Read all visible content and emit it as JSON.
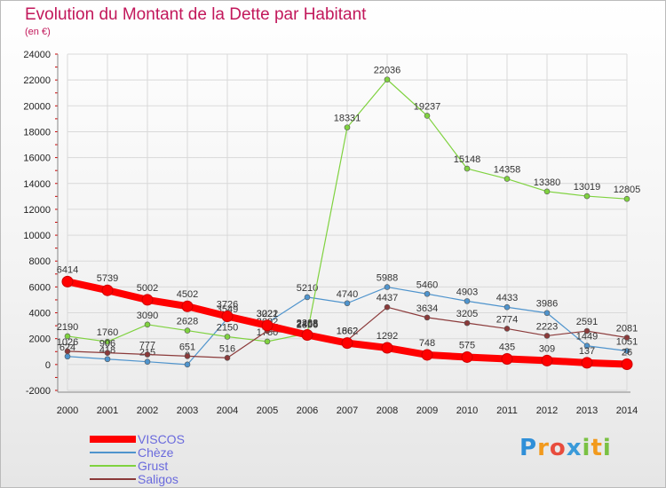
{
  "chart": {
    "title": "Evolution du Montant de la Dette par Habitant",
    "subtitle": "(en €)"
  },
  "colors": {
    "title": "#c2185b",
    "legend_text": "#6a6add",
    "grid": "#d9d9d9",
    "axis_tick": "#cc0000"
  },
  "logo": {
    "text": "Proxiti"
  },
  "chart_data": {
    "type": "line",
    "title": "Evolution du Montant de la Dette par Habitant",
    "subtitle": "(en €)",
    "xlabel": "",
    "ylabel": "",
    "x": [
      2000,
      2001,
      2002,
      2003,
      2004,
      2005,
      2006,
      2007,
      2008,
      2009,
      2010,
      2011,
      2012,
      2013,
      2014
    ],
    "ylim": [
      -2000,
      24000
    ],
    "yticks": [
      -2000,
      0,
      2000,
      4000,
      6000,
      8000,
      10000,
      12000,
      14000,
      16000,
      18000,
      20000,
      22000,
      24000
    ],
    "grid": true,
    "legend_position": "bottom-left",
    "series": [
      {
        "name": "VISCOS",
        "color": "#ff0000",
        "emphasis": true,
        "values": [
          6414,
          5739,
          5002,
          4502,
          3726,
          3021,
          2288,
          1662,
          1292,
          748,
          575,
          435,
          309,
          137,
          26
        ]
      },
      {
        "name": "Chèze",
        "color": "#4f94cd",
        "emphasis": false,
        "values": [
          624,
          418,
          215,
          0,
          3549,
          3222,
          5210,
          4740,
          5988,
          5460,
          4903,
          4433,
          3986,
          1449,
          1051
        ]
      },
      {
        "name": "Grust",
        "color": "#7fd23f",
        "emphasis": false,
        "values": [
          2190,
          1760,
          3090,
          2628,
          2150,
          1780,
          2408,
          18331,
          22036,
          19237,
          15148,
          14358,
          13380,
          13019,
          12805
        ]
      },
      {
        "name": "Saligos",
        "color": "#8b3a3a",
        "emphasis": false,
        "values": [
          1026,
          906,
          777,
          651,
          516,
          2602,
          2356,
          1862,
          4437,
          3634,
          3205,
          2774,
          2223,
          2591,
          2081
        ]
      }
    ]
  }
}
